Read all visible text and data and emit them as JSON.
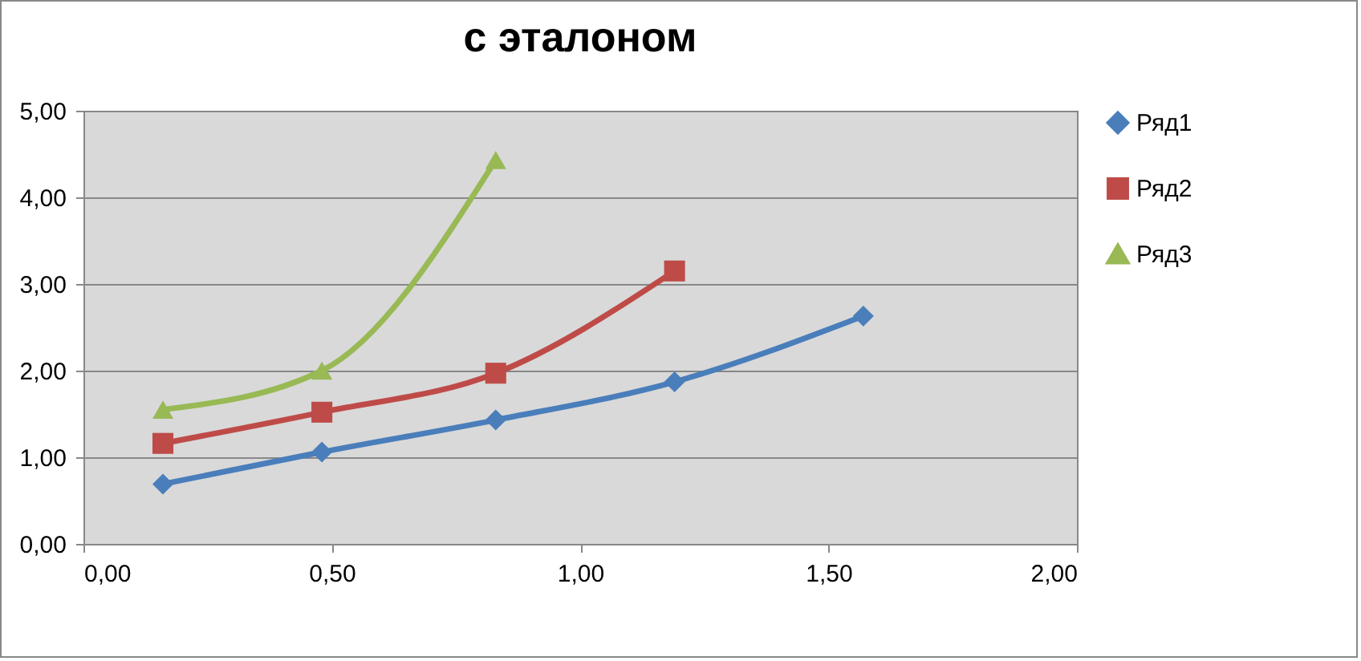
{
  "chart_data": {
    "type": "line",
    "title": "с эталоном",
    "x": [
      0.16,
      0.48,
      0.83,
      1.19,
      1.57
    ],
    "series": [
      {
        "name": "Ряд1",
        "color": "#4a7ebb",
        "marker": "diamond",
        "values": [
          0.69,
          1.06,
          1.43,
          1.87,
          2.63
        ]
      },
      {
        "name": "Ряд2",
        "color": "#be4b48",
        "marker": "square",
        "values": [
          1.16,
          1.52,
          1.97,
          3.15,
          null
        ]
      },
      {
        "name": "Ряд3",
        "color": "#98b954",
        "marker": "triangle",
        "values": [
          1.55,
          2.0,
          4.43,
          null,
          null
        ]
      }
    ],
    "xlim": [
      0,
      2
    ],
    "xticks": [
      {
        "value": 0,
        "label": "0,00"
      },
      {
        "value": 0.5,
        "label": "0,50"
      },
      {
        "value": 1,
        "label": "1,00"
      },
      {
        "value": 1.5,
        "label": "1,50"
      },
      {
        "value": 2,
        "label": "2,00"
      }
    ],
    "ylim": [
      0,
      5
    ],
    "yticks": [
      {
        "value": 0,
        "label": "0,00"
      },
      {
        "value": 1,
        "label": "1,00"
      },
      {
        "value": 2,
        "label": "2,00"
      },
      {
        "value": 3,
        "label": "3,00"
      },
      {
        "value": 4,
        "label": "4,00"
      },
      {
        "value": 5,
        "label": "5,00"
      }
    ],
    "grid": "y",
    "legend": "right"
  }
}
